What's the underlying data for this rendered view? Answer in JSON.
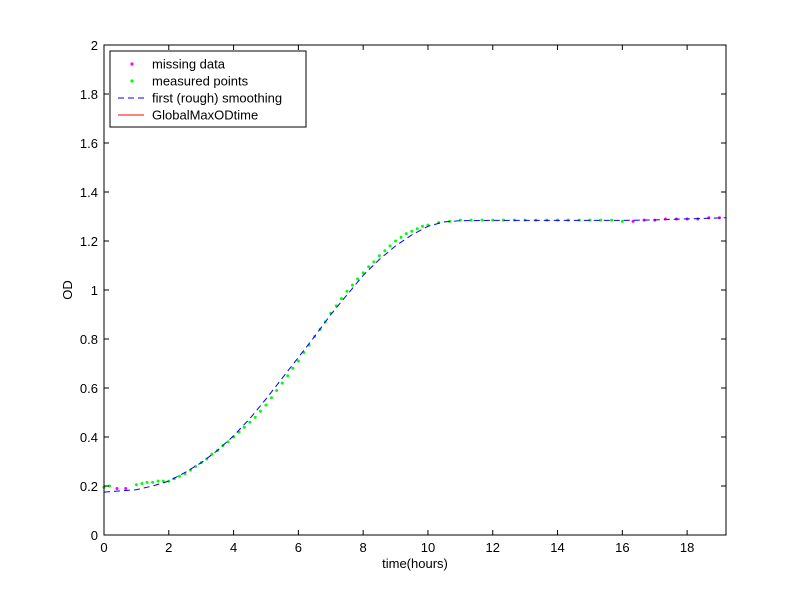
{
  "chart_data": {
    "type": "line",
    "title": "",
    "xlabel": "time(hours)",
    "ylabel": "OD",
    "xlim": [
      0,
      19.2
    ],
    "ylim": [
      0,
      2
    ],
    "xticks": [
      0,
      2,
      4,
      6,
      8,
      10,
      12,
      14,
      16,
      18
    ],
    "yticks": [
      0,
      0.2,
      0.4,
      0.6,
      0.8,
      1,
      1.2,
      1.4,
      1.6,
      1.8,
      2
    ],
    "xtick_labels": [
      "0",
      "2",
      "4",
      "6",
      "8",
      "10",
      "12",
      "14",
      "16",
      "18"
    ],
    "ytick_labels": [
      "0",
      "0.2",
      "0.4",
      "0.6",
      "0.8",
      "1",
      "1.2",
      "1.4",
      "1.6",
      "1.8",
      "2"
    ],
    "grid": false,
    "legend_position": "top-left",
    "series": [
      {
        "name": "missing data",
        "style": "dots",
        "color": "#ff00ff",
        "x": [
          0.4,
          0.67,
          16.33,
          16.67,
          17.0,
          17.33,
          17.67,
          18.0,
          18.33,
          18.67,
          19.0
        ],
        "y": [
          0.19,
          0.19,
          1.28,
          1.285,
          1.285,
          1.29,
          1.29,
          1.29,
          1.29,
          1.295,
          1.295
        ]
      },
      {
        "name": "measured points",
        "style": "dots",
        "color": "#00ff00",
        "x": [
          0.0,
          0.17,
          1.0,
          1.17,
          1.33,
          1.5,
          1.67,
          1.83,
          2.0,
          2.17,
          2.33,
          2.5,
          2.67,
          2.83,
          3.0,
          3.17,
          3.33,
          3.5,
          3.67,
          3.83,
          4.0,
          4.17,
          4.33,
          4.5,
          4.67,
          4.83,
          5.0,
          5.17,
          5.33,
          5.5,
          5.67,
          5.83,
          6.0,
          6.17,
          6.33,
          6.5,
          6.67,
          6.83,
          7.0,
          7.17,
          7.33,
          7.5,
          7.67,
          7.83,
          8.0,
          8.17,
          8.33,
          8.5,
          8.67,
          8.83,
          9.0,
          9.17,
          9.33,
          9.5,
          9.67,
          9.83,
          10.0,
          10.33,
          10.67,
          11.0,
          11.33,
          11.67,
          12.0,
          12.33,
          12.67,
          13.0,
          13.33,
          13.67,
          14.0,
          14.33,
          14.67,
          15.0,
          15.33,
          15.67,
          16.0
        ],
        "y": [
          0.195,
          0.2,
          0.205,
          0.21,
          0.215,
          0.215,
          0.22,
          0.22,
          0.22,
          0.23,
          0.24,
          0.25,
          0.265,
          0.28,
          0.295,
          0.31,
          0.33,
          0.345,
          0.365,
          0.38,
          0.4,
          0.42,
          0.44,
          0.46,
          0.48,
          0.505,
          0.53,
          0.56,
          0.59,
          0.62,
          0.65,
          0.68,
          0.71,
          0.745,
          0.775,
          0.81,
          0.84,
          0.87,
          0.905,
          0.935,
          0.965,
          0.995,
          1.02,
          1.045,
          1.07,
          1.095,
          1.115,
          1.14,
          1.16,
          1.18,
          1.2,
          1.215,
          1.23,
          1.24,
          1.25,
          1.26,
          1.265,
          1.275,
          1.28,
          1.285,
          1.285,
          1.285,
          1.285,
          1.285,
          1.285,
          1.285,
          1.285,
          1.285,
          1.285,
          1.285,
          1.285,
          1.285,
          1.285,
          1.285,
          1.28
        ]
      },
      {
        "name": "first (rough) smoothing",
        "style": "dashed",
        "color": "#0000ff",
        "x": [
          0,
          0.5,
          1,
          1.5,
          2,
          2.5,
          3,
          3.5,
          4,
          4.5,
          5,
          5.5,
          6,
          6.5,
          7,
          7.5,
          8,
          8.5,
          9,
          9.5,
          10,
          10.5,
          11,
          12,
          13,
          14,
          15,
          16,
          17,
          18,
          19.2
        ],
        "y": [
          0.175,
          0.18,
          0.185,
          0.2,
          0.22,
          0.255,
          0.295,
          0.345,
          0.405,
          0.475,
          0.555,
          0.64,
          0.725,
          0.81,
          0.9,
          0.98,
          1.06,
          1.125,
          1.18,
          1.225,
          1.26,
          1.278,
          1.283,
          1.284,
          1.284,
          1.284,
          1.284,
          1.284,
          1.286,
          1.29,
          1.295
        ]
      },
      {
        "name": "GlobalMaxODtime",
        "style": "solid",
        "color": "#ff0000",
        "x": [],
        "y": []
      }
    ]
  }
}
